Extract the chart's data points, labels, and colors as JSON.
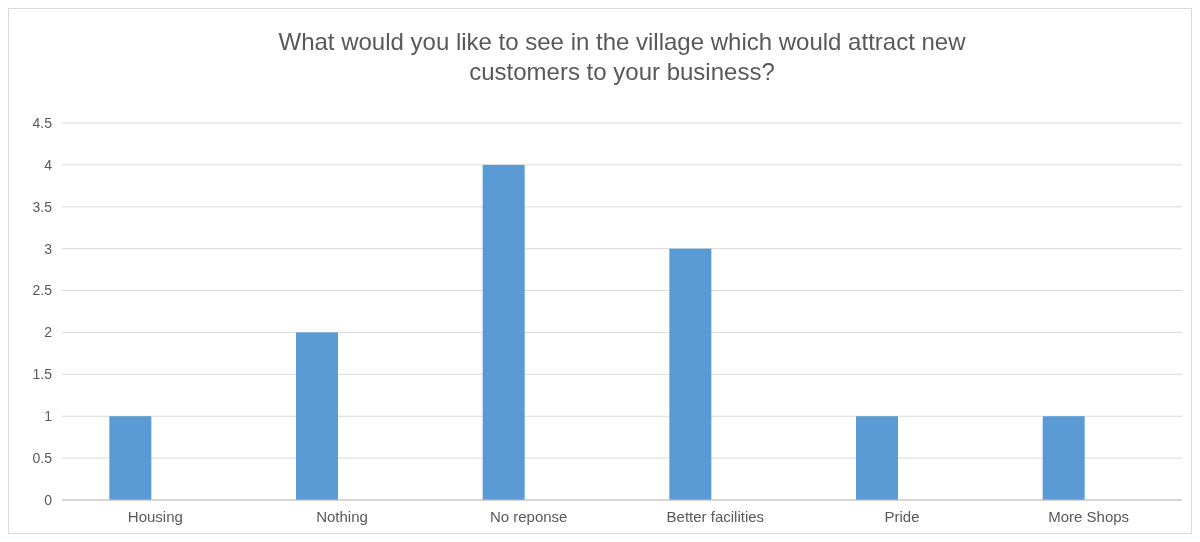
{
  "chart_data": {
    "type": "bar",
    "title": "What would you like to see in the village which would attract new customers to your business?",
    "categories": [
      "Housing",
      "Nothing",
      "No reponse",
      "Better facilities",
      "Pride",
      "More Shops"
    ],
    "values": [
      1,
      2,
      4,
      3,
      1,
      1
    ],
    "color": "#5b9bd5",
    "ylim": [
      0,
      4.5
    ],
    "yticks": [
      0,
      0.5,
      1,
      1.5,
      2,
      2.5,
      3,
      3.5,
      4,
      4.5
    ],
    "grid": "y"
  }
}
